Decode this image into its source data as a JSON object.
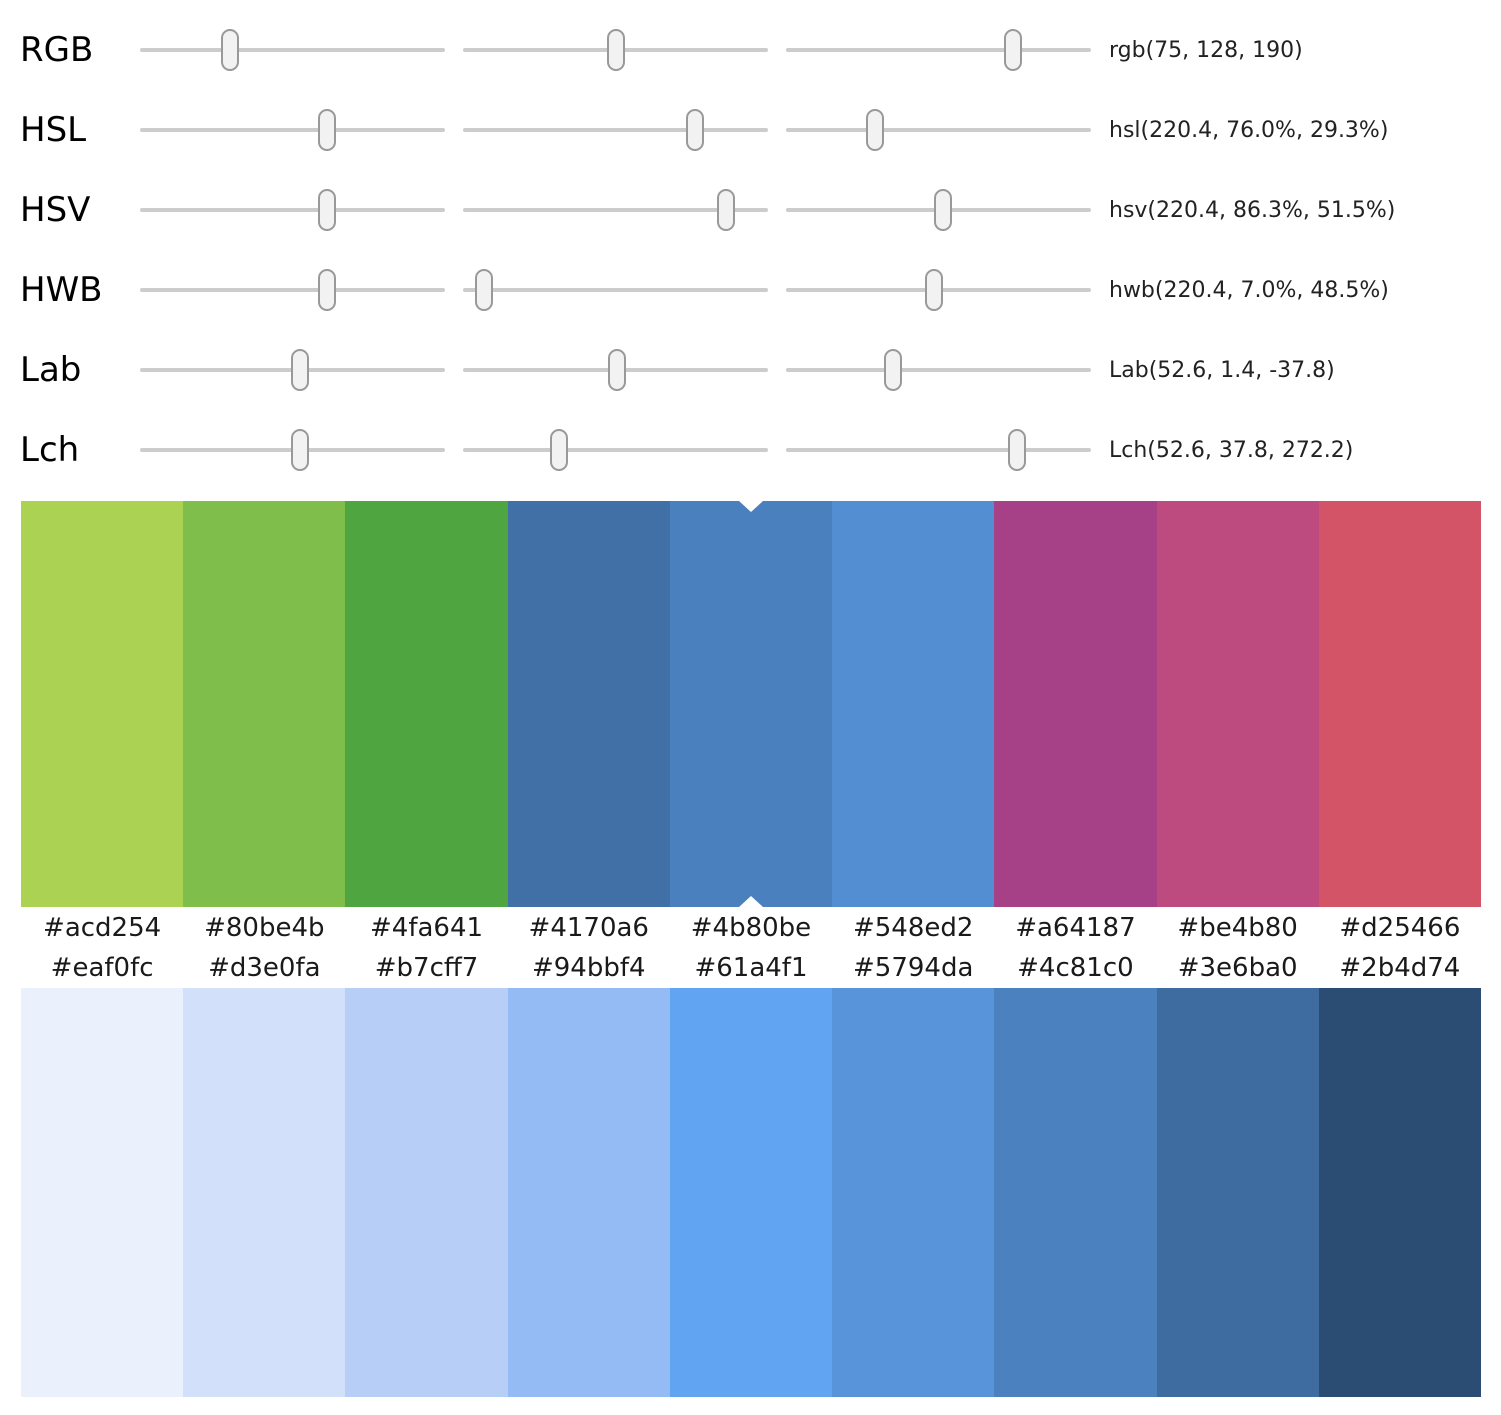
{
  "sliders": [
    {
      "label": "RGB",
      "value": "rgb(75, 128, 190)",
      "positions": [
        29.4,
        50.2,
        74.5
      ]
    },
    {
      "label": "HSL",
      "value": "hsl(220.4, 76.0%, 29.3%)",
      "positions": [
        61.2,
        76.0,
        29.3
      ]
    },
    {
      "label": "HSV",
      "value": "hsv(220.4, 86.3%, 51.5%)",
      "positions": [
        61.2,
        86.3,
        51.5
      ]
    },
    {
      "label": "HWB",
      "value": "hwb(220.4, 7.0%, 48.5%)",
      "positions": [
        61.2,
        7.0,
        48.5
      ]
    },
    {
      "label": "Lab",
      "value": "Lab(52.6, 1.4, -37.8)",
      "positions": [
        52.6,
        50.5,
        35.2
      ]
    },
    {
      "label": "Lch",
      "value": "Lch(52.6, 37.8, 272.2)",
      "positions": [
        52.6,
        31.5,
        75.6
      ]
    }
  ],
  "hue_palette": {
    "selected_index": 4,
    "selected_hex": "#4b80be",
    "swatches": [
      {
        "hex": "#acd254"
      },
      {
        "hex": "#80be4b"
      },
      {
        "hex": "#4fa641"
      },
      {
        "hex": "#4170a6"
      },
      {
        "hex": "#4b80be"
      },
      {
        "hex": "#548ed2"
      },
      {
        "hex": "#a64187"
      },
      {
        "hex": "#be4b80"
      },
      {
        "hex": "#d25466"
      }
    ]
  },
  "shade_palette": {
    "swatches": [
      {
        "hex": "#eaf0fc"
      },
      {
        "hex": "#d3e0fa"
      },
      {
        "hex": "#b7cff7"
      },
      {
        "hex": "#94bbf4"
      },
      {
        "hex": "#61a4f1"
      },
      {
        "hex": "#5794da"
      },
      {
        "hex": "#4c81c0"
      },
      {
        "hex": "#3e6ba0"
      },
      {
        "hex": "#2b4d74"
      }
    ]
  },
  "colors": {
    "track": "#cccccc",
    "thumb_fill": "#f2f2f2",
    "thumb_border": "#999999",
    "notch": "#ffffff"
  }
}
